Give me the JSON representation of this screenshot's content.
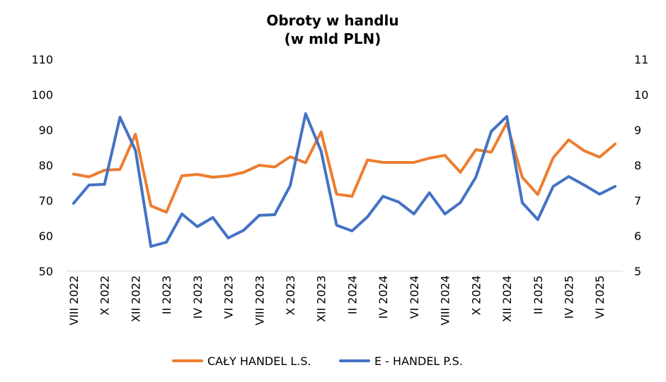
{
  "chart_data": {
    "type": "line",
    "title": "Obroty w handlu",
    "subtitle": "(w mld PLN)",
    "x": [
      "VIII 2022",
      "IX 2022",
      "X 2022",
      "XI 2022",
      "XII 2022",
      "I 2023",
      "II 2023",
      "III 2023",
      "IV 2023",
      "V 2023",
      "VI 2023",
      "VII 2023",
      "VIII 2023",
      "IX 2023",
      "X 2023",
      "XI 2023",
      "XII 2023",
      "I 2024",
      "II 2024",
      "III 2024",
      "IV 2024",
      "V 2024",
      "VI 2024",
      "VII 2024",
      "VIII 2024",
      "IX 2024",
      "X 2024",
      "XI 2024",
      "XII 2024",
      "I 2025",
      "II 2025",
      "III 2025",
      "IV 2025",
      "V 2025",
      "VI 2025",
      "VII 2025"
    ],
    "xtick_labels": [
      "VIII 2022",
      "X 2022",
      "XII 2022",
      "II 2023",
      "IV 2023",
      "VI 2023",
      "VIII 2023",
      "X 2023",
      "XII 2023",
      "II 2024",
      "IV 2024",
      "VI 2024",
      "VIII 2024",
      "X 2024",
      "XII 2024",
      "II 2025",
      "IV 2025",
      "VI 2025"
    ],
    "series": [
      {
        "name": "CAŁY HANDEL L.S.",
        "axis": "left",
        "color": "#ED7D31",
        "values": [
          77.5,
          76.7,
          78.6,
          78.8,
          88.8,
          68.5,
          66.7,
          77.0,
          77.4,
          76.6,
          77.0,
          78.0,
          80.0,
          79.5,
          82.4,
          80.7,
          89.4,
          71.8,
          71.2,
          81.5,
          80.8,
          80.8,
          80.8,
          82.0,
          82.8,
          78.0,
          84.4,
          83.7,
          92.0,
          76.6,
          71.7,
          82.1,
          87.2,
          84.1,
          82.3,
          86.0
        ]
      },
      {
        "name": "E - HANDEL P.S.",
        "axis": "right",
        "color": "#4472C4",
        "values": [
          6.92,
          7.44,
          7.46,
          9.36,
          8.42,
          5.7,
          5.82,
          6.62,
          6.26,
          6.52,
          5.94,
          6.16,
          6.58,
          6.6,
          7.42,
          9.46,
          8.4,
          6.3,
          6.14,
          6.54,
          7.12,
          6.96,
          6.62,
          7.22,
          6.62,
          6.94,
          7.66,
          8.96,
          9.38,
          6.94,
          6.46,
          7.4,
          7.68,
          7.44,
          7.18,
          7.4
        ]
      }
    ],
    "y_left": {
      "min": 50,
      "max": 110,
      "step": 10,
      "ticks": [
        "50",
        "60",
        "70",
        "80",
        "90",
        "100",
        "110"
      ]
    },
    "y_right": {
      "min": 5,
      "max": 11,
      "step": 1,
      "ticks": [
        "5",
        "6",
        "7",
        "8",
        "9",
        "10",
        "11"
      ]
    },
    "grid": false,
    "legend_position": "bottom"
  }
}
